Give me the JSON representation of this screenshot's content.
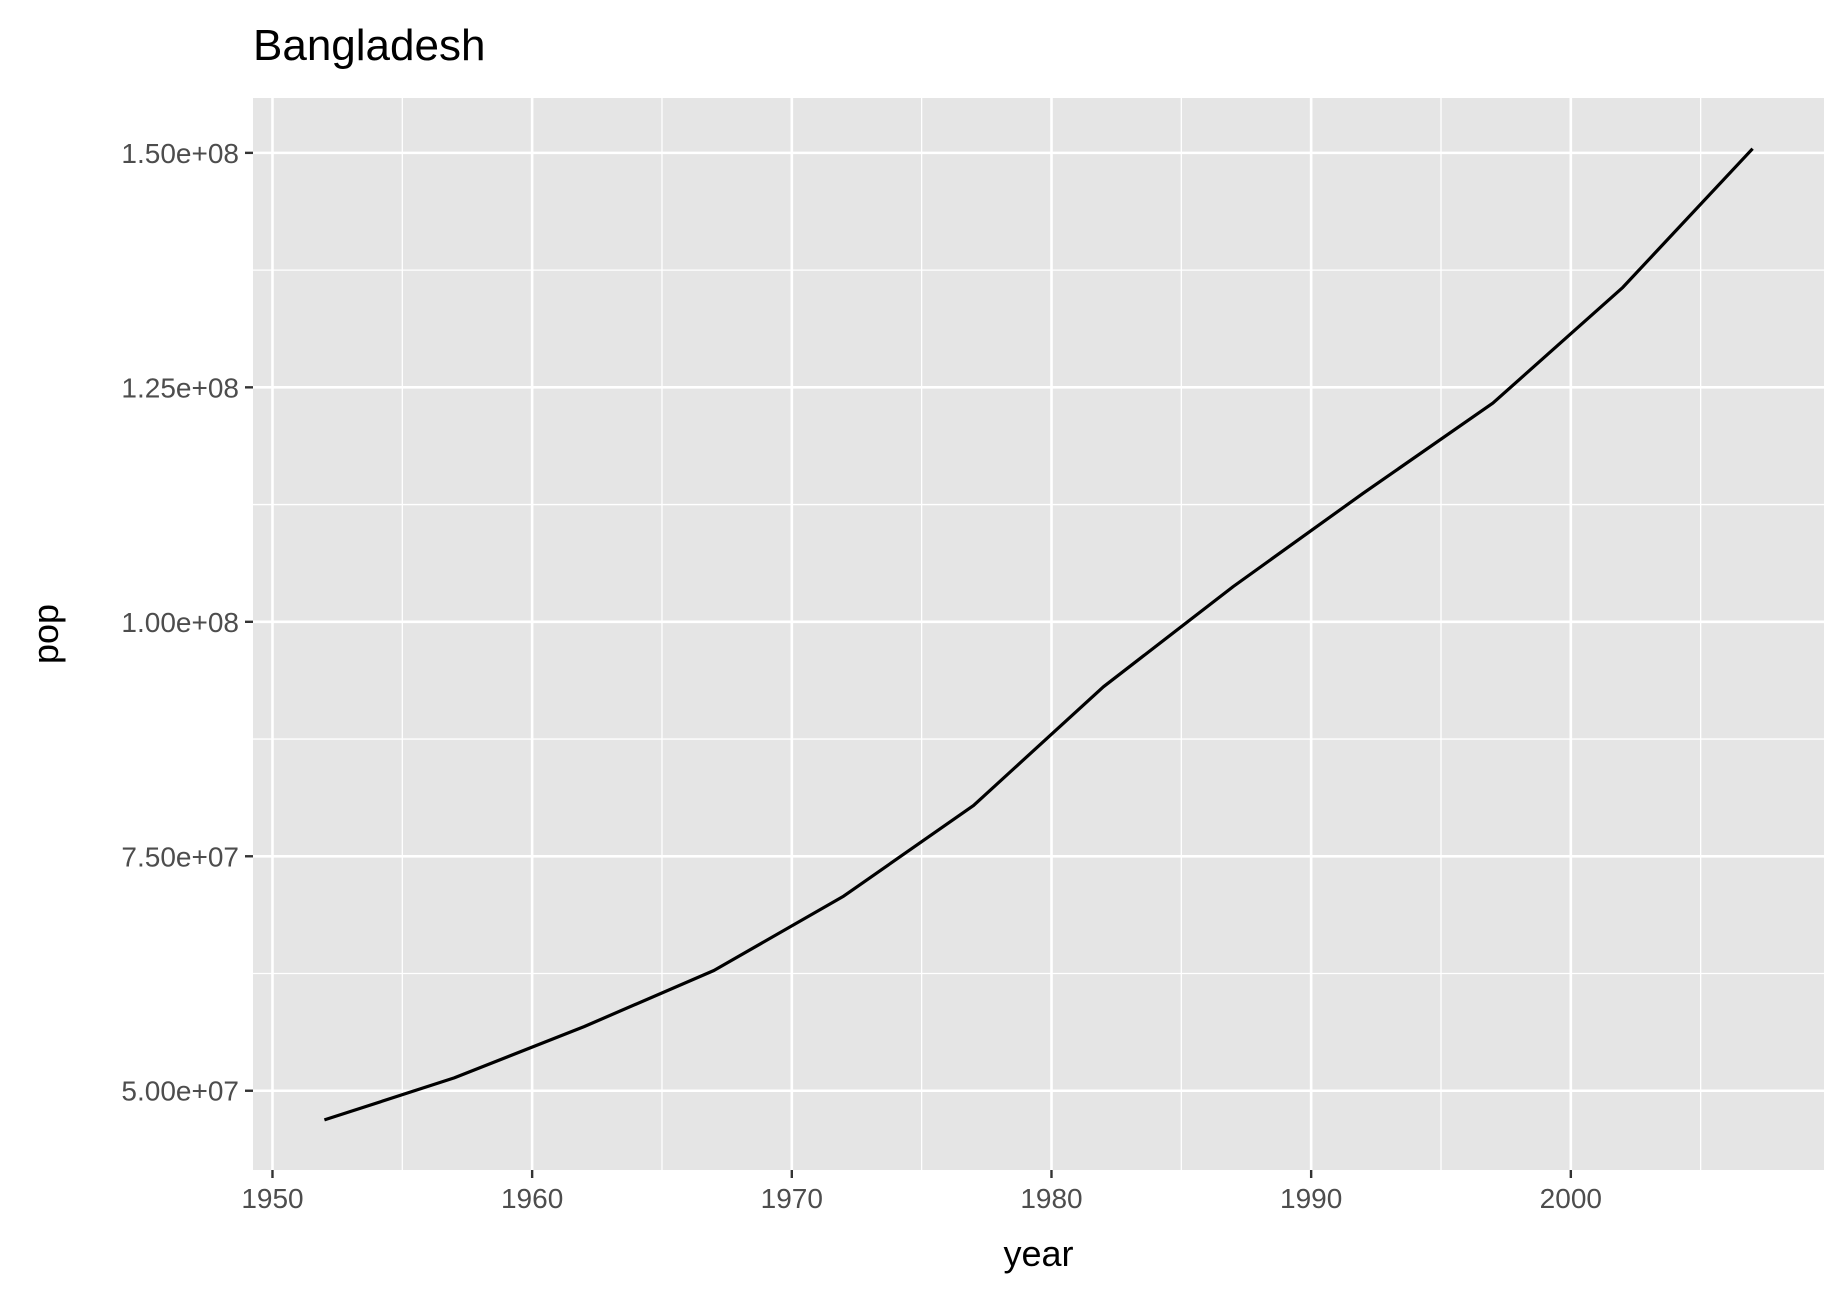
{
  "chart_data": {
    "type": "line",
    "title": "Bangladesh",
    "xlabel": "year",
    "ylabel": "pop",
    "xlim": [
      1949.25,
      2009.75
    ],
    "ylim": [
      41550000,
      155850000
    ],
    "x_ticks": [
      1950,
      1960,
      1970,
      1980,
      1990,
      2000
    ],
    "x_tick_labels": [
      "1950",
      "1960",
      "1970",
      "1980",
      "1990",
      "2000"
    ],
    "y_ticks": [
      50000000,
      75000000,
      100000000,
      125000000,
      150000000
    ],
    "y_tick_labels": [
      "5.00e+07",
      "7.50e+07",
      "1.00e+08",
      "1.25e+08",
      "1.50e+08"
    ],
    "grid": true,
    "colors": {
      "panel": "#e5e5e5",
      "grid": "#ffffff",
      "line": "#000000",
      "tick_text": "#4d4d4d"
    },
    "series": [
      {
        "x": [
          1952,
          1957,
          1962,
          1967,
          1972,
          1977,
          1982,
          1987,
          1992,
          1997,
          2002,
          2007
        ],
        "values": [
          46886859,
          51365468,
          56839289,
          62821884,
          70759295,
          80428306,
          93074406,
          103764241,
          113704579,
          123315288,
          135656790,
          150448339
        ]
      }
    ]
  }
}
